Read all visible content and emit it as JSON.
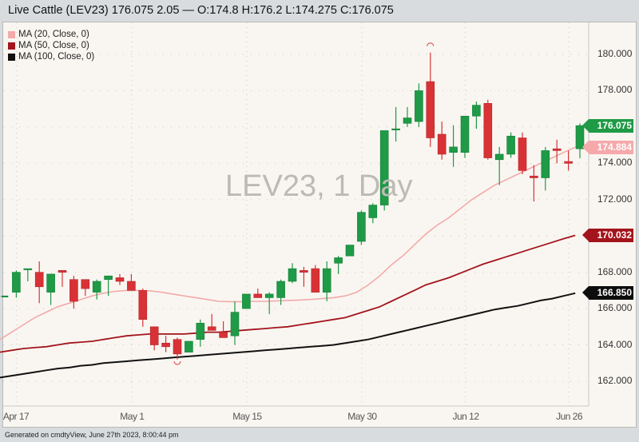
{
  "title_bar": {
    "text": "Live Cattle (LEV23) 176.075 2.05 — O:174.8 H:176.2 L:174.275 C:176.075"
  },
  "legend": [
    {
      "label": "MA (20, Close, 0)",
      "color": "#f2aaaa"
    },
    {
      "label": "MA (50, Close, 0)",
      "color": "#a3141c"
    },
    {
      "label": "MA (100, Close, 0)",
      "color": "#111111"
    }
  ],
  "watermark": "LEV23, 1 Day",
  "footer": "Generated on cmdtyView, June 27th 2023, 8:00:44 pm",
  "price_tags": [
    {
      "label": "176.075",
      "color": "#1f9a46",
      "price": 176.075
    },
    {
      "label": "174.884",
      "color": "#f5a9ab",
      "price": 174.884
    },
    {
      "label": "170.032",
      "color": "#a3141c",
      "price": 170.032
    },
    {
      "label": "166.850",
      "color": "#0d0d0d",
      "price": 166.85
    }
  ],
  "colors": {
    "up": "#1f9a46",
    "down": "#d83236",
    "ma20": "#f2aaaa",
    "ma50": "#a3141c",
    "ma100": "#111111",
    "grid": "#c9c6c0"
  },
  "chart_data": {
    "type": "candlestick",
    "title": "Live Cattle (LEV23)",
    "subtitle": "LEV23, 1 Day",
    "xlabel": "",
    "ylabel": "",
    "ylim": [
      161.0,
      181.0
    ],
    "y_ticks": [
      162.0,
      164.0,
      166.0,
      168.0,
      170.0,
      172.0,
      174.0,
      176.0,
      178.0,
      180.0
    ],
    "x_tick_labels": [
      {
        "label": "Apr 17",
        "index": 1
      },
      {
        "label": "May 1",
        "index": 11
      },
      {
        "label": "May 15",
        "index": 21
      },
      {
        "label": "May 30",
        "index": 31
      },
      {
        "label": "Jun 12",
        "index": 40
      },
      {
        "label": "Jun 26",
        "index": 49
      }
    ],
    "grid": true,
    "legend_position": "top-left",
    "last": {
      "open": 174.8,
      "high": 176.2,
      "low": 174.275,
      "close": 176.075,
      "change": 2.05
    },
    "candles": [
      {
        "o": 166.7,
        "h": 166.7,
        "l": 166.7,
        "c": 166.7
      },
      {
        "o": 166.9,
        "h": 168.1,
        "l": 166.6,
        "c": 168.0
      },
      {
        "o": 168.2,
        "h": 168.2,
        "l": 167.5,
        "c": 168.2
      },
      {
        "o": 168.0,
        "h": 168.6,
        "l": 166.3,
        "c": 167.2
      },
      {
        "o": 166.9,
        "h": 167.9,
        "l": 166.2,
        "c": 167.9
      },
      {
        "o": 168.1,
        "h": 168.1,
        "l": 167.2,
        "c": 168.0
      },
      {
        "o": 167.6,
        "h": 167.8,
        "l": 166.0,
        "c": 166.4
      },
      {
        "o": 167.6,
        "h": 167.6,
        "l": 166.7,
        "c": 167.1
      },
      {
        "o": 166.9,
        "h": 167.6,
        "l": 166.5,
        "c": 167.5
      },
      {
        "o": 167.6,
        "h": 167.8,
        "l": 166.7,
        "c": 167.8
      },
      {
        "o": 167.7,
        "h": 167.9,
        "l": 167.3,
        "c": 167.5
      },
      {
        "o": 167.5,
        "h": 167.9,
        "l": 167.0,
        "c": 167.0
      },
      {
        "o": 167.0,
        "h": 167.1,
        "l": 165.0,
        "c": 165.4
      },
      {
        "o": 165.0,
        "h": 165.0,
        "l": 163.7,
        "c": 164.0
      },
      {
        "o": 164.1,
        "h": 164.5,
        "l": 163.6,
        "c": 163.9
      },
      {
        "o": 164.3,
        "h": 164.4,
        "l": 163.2,
        "c": 163.5
      },
      {
        "o": 163.6,
        "h": 164.2,
        "l": 163.6,
        "c": 164.2
      },
      {
        "o": 164.3,
        "h": 165.4,
        "l": 163.9,
        "c": 165.2
      },
      {
        "o": 165.0,
        "h": 165.7,
        "l": 164.9,
        "c": 164.8
      },
      {
        "o": 164.7,
        "h": 165.3,
        "l": 164.5,
        "c": 164.4
      },
      {
        "o": 164.5,
        "h": 166.4,
        "l": 164.0,
        "c": 165.8
      },
      {
        "o": 166.0,
        "h": 166.8,
        "l": 166.1,
        "c": 166.8
      },
      {
        "o": 166.8,
        "h": 167.1,
        "l": 166.6,
        "c": 166.6
      },
      {
        "o": 166.6,
        "h": 166.9,
        "l": 165.7,
        "c": 166.8
      },
      {
        "o": 166.6,
        "h": 167.6,
        "l": 166.2,
        "c": 167.5
      },
      {
        "o": 167.5,
        "h": 168.5,
        "l": 167.4,
        "c": 168.2
      },
      {
        "o": 168.1,
        "h": 168.3,
        "l": 167.2,
        "c": 168.0
      },
      {
        "o": 168.2,
        "h": 168.4,
        "l": 166.9,
        "c": 166.9
      },
      {
        "o": 166.9,
        "h": 168.6,
        "l": 166.4,
        "c": 168.2
      },
      {
        "o": 168.5,
        "h": 168.9,
        "l": 167.9,
        "c": 168.8
      },
      {
        "o": 168.9,
        "h": 169.5,
        "l": 168.9,
        "c": 169.5
      },
      {
        "o": 169.7,
        "h": 171.4,
        "l": 169.5,
        "c": 171.3
      },
      {
        "o": 171.0,
        "h": 171.8,
        "l": 170.7,
        "c": 171.7
      },
      {
        "o": 171.7,
        "h": 175.8,
        "l": 171.4,
        "c": 175.8
      },
      {
        "o": 175.9,
        "h": 177.1,
        "l": 175.2,
        "c": 175.9
      },
      {
        "o": 176.2,
        "h": 177.1,
        "l": 176.0,
        "c": 176.5
      },
      {
        "o": 176.3,
        "h": 178.4,
        "l": 176.0,
        "c": 178.0
      },
      {
        "o": 178.5,
        "h": 180.1,
        "l": 174.9,
        "c": 175.4
      },
      {
        "o": 175.6,
        "h": 176.3,
        "l": 174.2,
        "c": 174.5
      },
      {
        "o": 174.6,
        "h": 176.1,
        "l": 173.8,
        "c": 174.9
      },
      {
        "o": 174.6,
        "h": 176.6,
        "l": 174.3,
        "c": 176.6
      },
      {
        "o": 176.6,
        "h": 177.4,
        "l": 175.9,
        "c": 177.2
      },
      {
        "o": 177.3,
        "h": 177.5,
        "l": 174.2,
        "c": 174.3
      },
      {
        "o": 174.2,
        "h": 174.9,
        "l": 172.8,
        "c": 174.5
      },
      {
        "o": 174.5,
        "h": 175.7,
        "l": 174.3,
        "c": 175.5
      },
      {
        "o": 175.4,
        "h": 175.7,
        "l": 173.4,
        "c": 173.6
      },
      {
        "o": 173.3,
        "h": 173.9,
        "l": 171.9,
        "c": 173.2
      },
      {
        "o": 173.2,
        "h": 174.9,
        "l": 172.5,
        "c": 174.7
      },
      {
        "o": 174.8,
        "h": 175.3,
        "l": 174.0,
        "c": 174.7
      },
      {
        "o": 174.1,
        "h": 174.7,
        "l": 173.6,
        "c": 174.0
      },
      {
        "o": 174.8,
        "h": 176.2,
        "l": 174.275,
        "c": 176.075
      }
    ],
    "series": [
      {
        "name": "MA (20, Close, 0)",
        "values": [
          164.3,
          164.7,
          165.1,
          165.5,
          165.8,
          166.1,
          166.3,
          166.5,
          166.7,
          166.85,
          166.95,
          167.0,
          167.0,
          166.98,
          166.9,
          166.8,
          166.7,
          166.6,
          166.5,
          166.4,
          166.38,
          166.38,
          166.4,
          166.4,
          166.42,
          166.45,
          166.47,
          166.5,
          166.55,
          166.6,
          166.7,
          166.9,
          167.3,
          167.8,
          168.4,
          168.9,
          169.5,
          170.1,
          170.6,
          171.0,
          171.5,
          172.0,
          172.4,
          172.8,
          173.1,
          173.4,
          173.7,
          174.0,
          174.3,
          174.6,
          174.884
        ]
      },
      {
        "name": "MA (50, Close, 0)",
        "values": [
          163.6,
          163.7,
          163.8,
          163.85,
          163.9,
          164.0,
          164.1,
          164.15,
          164.2,
          164.3,
          164.4,
          164.5,
          164.55,
          164.6,
          164.6,
          164.6,
          164.6,
          164.65,
          164.7,
          164.7,
          164.75,
          164.8,
          164.85,
          164.9,
          164.95,
          165.0,
          165.1,
          165.2,
          165.3,
          165.4,
          165.5,
          165.7,
          165.9,
          166.1,
          166.4,
          166.7,
          167.0,
          167.3,
          167.5,
          167.7,
          167.95,
          168.2,
          168.45,
          168.65,
          168.85,
          169.05,
          169.25,
          169.45,
          169.65,
          169.85,
          170.032
        ]
      },
      {
        "name": "MA (100, Close, 0)",
        "values": [
          162.2,
          162.3,
          162.4,
          162.5,
          162.6,
          162.7,
          162.75,
          162.85,
          162.9,
          163.0,
          163.05,
          163.1,
          163.15,
          163.2,
          163.25,
          163.3,
          163.35,
          163.4,
          163.45,
          163.5,
          163.55,
          163.6,
          163.65,
          163.7,
          163.75,
          163.8,
          163.85,
          163.9,
          163.95,
          164.0,
          164.1,
          164.2,
          164.3,
          164.45,
          164.6,
          164.75,
          164.9,
          165.05,
          165.2,
          165.35,
          165.5,
          165.65,
          165.8,
          165.95,
          166.05,
          166.15,
          166.3,
          166.45,
          166.55,
          166.7,
          166.85
        ]
      }
    ]
  }
}
